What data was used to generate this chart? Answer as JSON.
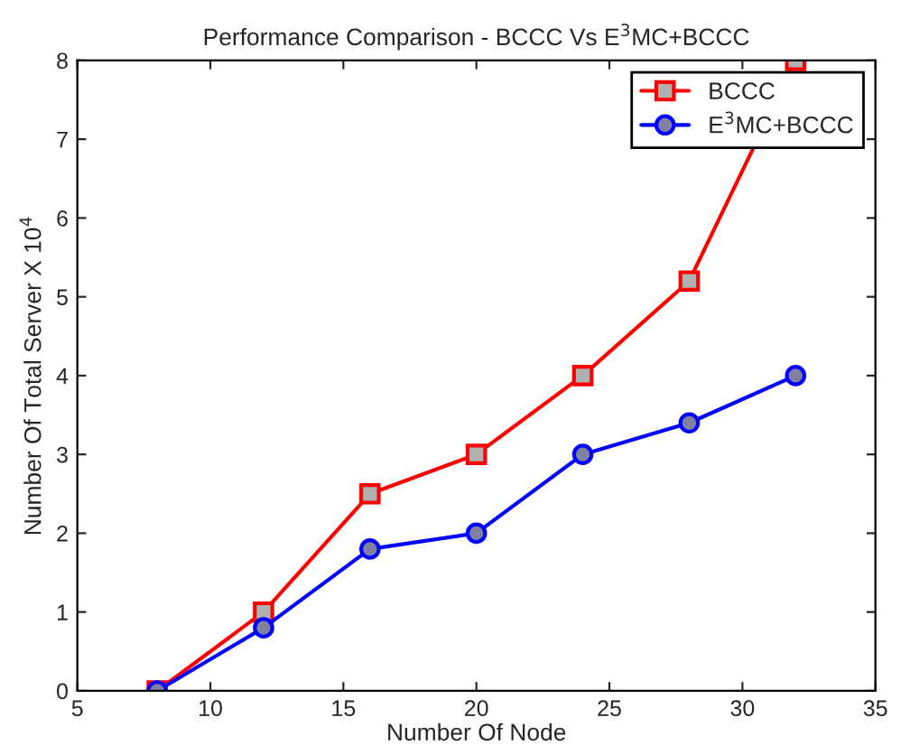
{
  "chart_data": {
    "type": "line",
    "title": "Performance Comparison - BCCC Vs E$^{3}$MC+BCCC",
    "xlabel": "Number Of Node",
    "ylabel": "Number Of Total Server X 10$^{4}$",
    "x": [
      8,
      12,
      16,
      20,
      24,
      28,
      32
    ],
    "series": [
      {
        "name": "BCCC",
        "color": "#ff0000",
        "marker": "square",
        "values": [
          0,
          1,
          2.5,
          3,
          4,
          5.2,
          8
        ]
      },
      {
        "name": "E$^{3}$MC+BCCC",
        "color": "#0000ff",
        "marker": "circle",
        "values": [
          0,
          0.8,
          1.8,
          2,
          3,
          3.4,
          4
        ]
      }
    ],
    "xlim": [
      5,
      35
    ],
    "xticks": [
      5,
      10,
      15,
      20,
      25,
      30,
      35
    ],
    "ylim": [
      0,
      8
    ],
    "yticks": [
      0,
      1,
      2,
      3,
      4,
      5,
      6,
      7,
      8
    ],
    "grid": false,
    "legend": "top right",
    "line_style": "solid"
  }
}
